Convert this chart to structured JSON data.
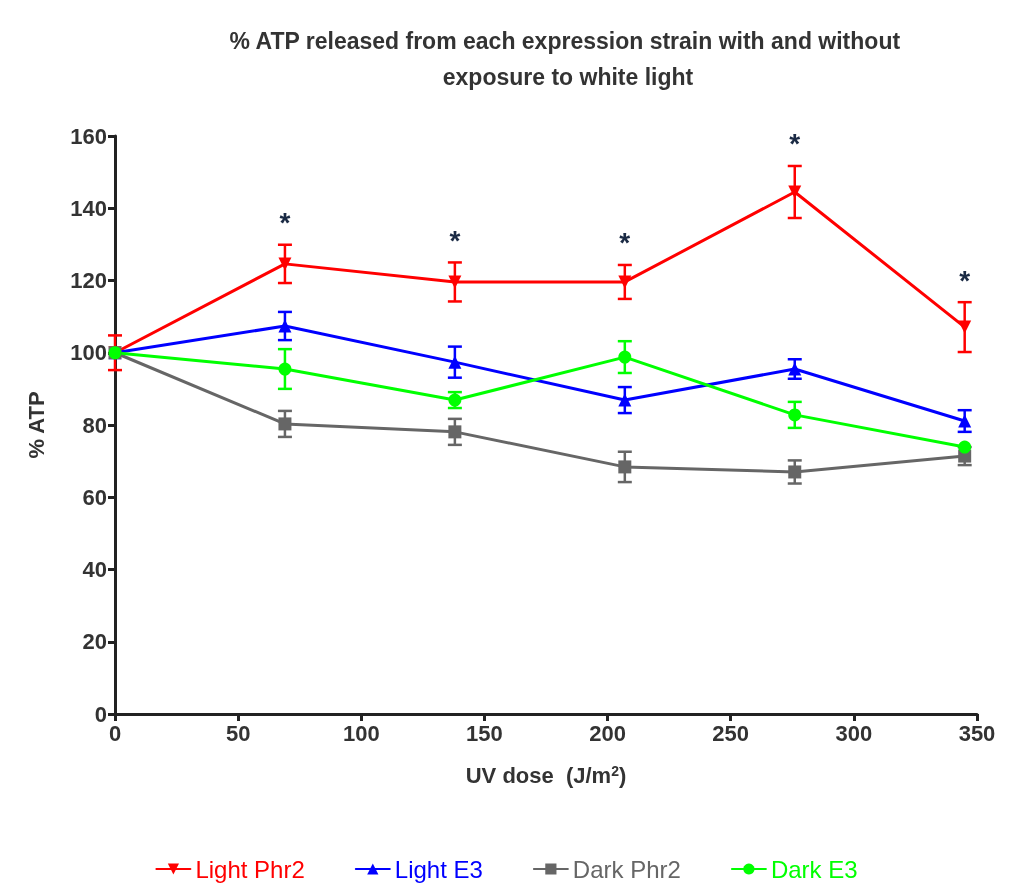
{
  "chart_data": {
    "type": "line",
    "title": "% ATP released from each expression strain with and without exposure to white light",
    "xlabel": "UV dose  (J/m$^{2}$)",
    "ylabel": "% ATP",
    "x": [
      0,
      69,
      138,
      207,
      276,
      345
    ],
    "xlim": [
      0,
      350
    ],
    "xticks": [
      0,
      50,
      100,
      150,
      200,
      250,
      300,
      350
    ],
    "ylim": [
      0,
      160
    ],
    "yticks": [
      0,
      20,
      40,
      60,
      80,
      100,
      120,
      140,
      160
    ],
    "grid": false,
    "legend": "bottom",
    "line_style": "solid",
    "series": [
      {
        "name": "Light Phr2",
        "color": "#ff0000",
        "marker": "triangle-down",
        "values": [
          100,
          124.6,
          119.6,
          119.6,
          144.5,
          107.1
        ],
        "errors": [
          4.8,
          5.3,
          5.4,
          4.7,
          7.2,
          6.9
        ]
      },
      {
        "name": "Light E3",
        "color": "#0000ff",
        "marker": "triangle",
        "values": [
          100,
          107.4,
          97.4,
          86.9,
          95.5,
          81.1
        ],
        "errors": [
          null,
          3.9,
          4.3,
          3.6,
          2.7,
          3
        ]
      },
      {
        "name": "Dark Phr2",
        "color": "#666666",
        "marker": "square",
        "values": [
          100,
          80.3,
          78.1,
          68.4,
          67,
          71.4
        ],
        "errors": [
          null,
          3.6,
          3.6,
          4.2,
          3.2,
          2.5
        ]
      },
      {
        "name": "Dark E3",
        "color": "#00ff00",
        "marker": "circle",
        "values": [
          100,
          95.5,
          86.9,
          98.8,
          82.8,
          73.9
        ],
        "errors": [
          null,
          5.5,
          2.2,
          4.4,
          3.6,
          null
        ]
      }
    ],
    "annotations": [
      "*",
      "*",
      "*",
      "*",
      "*"
    ]
  }
}
